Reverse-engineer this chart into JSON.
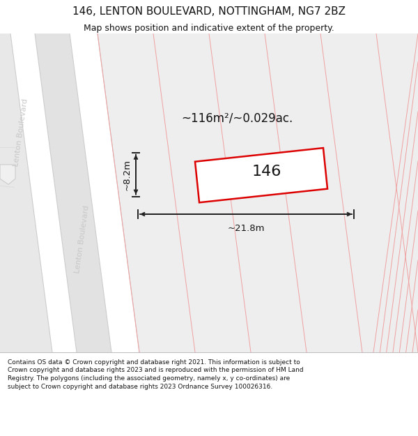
{
  "title": "146, LENTON BOULEVARD, NOTTINGHAM, NG7 2BZ",
  "subtitle": "Map shows position and indicative extent of the property.",
  "footer": "Contains OS data © Crown copyright and database right 2021. This information is subject to Crown copyright and database rights 2023 and is reproduced with the permission of HM Land Registry. The polygons (including the associated geometry, namely x, y co-ordinates) are subject to Crown copyright and database rights 2023 Ordnance Survey 100026316.",
  "bg_color": "#ffffff",
  "map_bg": "#efefef",
  "road_color": "#ffffff",
  "grid_line_color": "#f0a0a0",
  "road_border_color": "#d8d8d8",
  "property_outline_color": "#dd0000",
  "property_fill_color": "#ffffff",
  "measurement_color": "#222222",
  "street_label_color": "#c8c8c8",
  "area_text": "~116m²/~0.029ac.",
  "number_text": "146",
  "dim_width": "~21.8m",
  "dim_height": "~8.2m",
  "title_fontsize": 11,
  "subtitle_fontsize": 9,
  "footer_fontsize": 6.5
}
